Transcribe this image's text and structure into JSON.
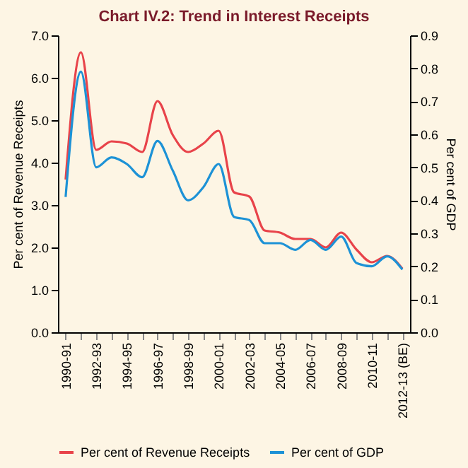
{
  "chart_data": {
    "type": "line",
    "title": "Chart IV.2: Trend in Interest Receipts",
    "ylabel": "Per cent of Revenue Receipts",
    "y2label": "Per cent  of GDP",
    "categories": [
      "1990-91",
      null,
      "1992-93",
      null,
      "1994-95",
      null,
      "1996-97",
      null,
      "1998-99",
      null,
      "2000-01",
      null,
      "2002-03",
      null,
      "2004-05",
      null,
      "2006-07",
      null,
      "2008-09",
      null,
      "2010-11",
      null,
      "2012-13 (BE)"
    ],
    "series": [
      {
        "name": "Per cent of Revenue Receipts",
        "color": "#e8434a",
        "values": [
          3.6,
          6.6,
          4.3,
          4.5,
          4.45,
          4.25,
          5.45,
          4.65,
          4.25,
          4.45,
          4.75,
          3.3,
          3.2,
          2.4,
          2.35,
          2.2,
          2.2,
          2.0,
          2.35,
          1.95,
          1.65,
          1.8,
          1.5
        ]
      },
      {
        "name": "Per cent of GDP",
        "color": "#1d92d6",
        "axis": "y2",
        "values": [
          0.41,
          0.79,
          0.5,
          0.53,
          0.51,
          0.47,
          0.58,
          0.49,
          0.4,
          0.44,
          0.51,
          0.35,
          0.34,
          0.27,
          0.27,
          0.25,
          0.28,
          0.25,
          0.29,
          0.21,
          0.2,
          0.23,
          0.19
        ]
      }
    ],
    "ylim": [
      0,
      7
    ],
    "yticks": [
      {
        "value": 0,
        "label": "0.0"
      },
      {
        "value": 1,
        "label": "1.0"
      },
      {
        "value": 2,
        "label": "2.0"
      },
      {
        "value": 3,
        "label": "3.0"
      },
      {
        "value": 4,
        "label": "4.0"
      },
      {
        "value": 5,
        "label": "5.0"
      },
      {
        "value": 6,
        "label": "6.0"
      },
      {
        "value": 7,
        "label": "7.0"
      }
    ],
    "y2lim": [
      0,
      0.9
    ],
    "y2ticks": [
      {
        "value": 0,
        "label": "0.0"
      },
      {
        "value": 0.1,
        "label": "0.1"
      },
      {
        "value": 0.2,
        "label": "0.2"
      },
      {
        "value": 0.3,
        "label": "0.3"
      },
      {
        "value": 0.4,
        "label": "0.4"
      },
      {
        "value": 0.5,
        "label": "0.5"
      },
      {
        "value": 0.6,
        "label": "0.6"
      },
      {
        "value": 0.7,
        "label": "0.7"
      },
      {
        "value": 0.8,
        "label": "0.8"
      },
      {
        "value": 0.9,
        "label": "0.9"
      }
    ],
    "grid": false,
    "legend": "bottom",
    "marker": "none",
    "line_style": "solid"
  }
}
